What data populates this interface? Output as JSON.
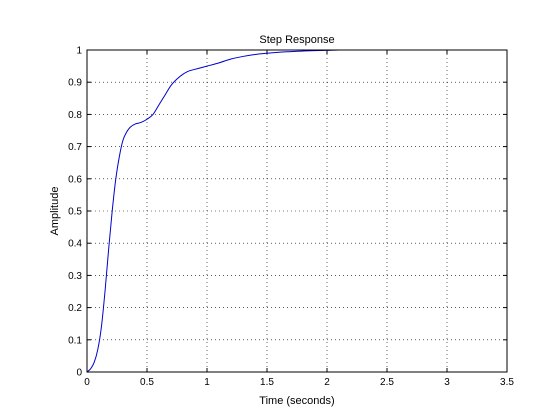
{
  "chart_data": {
    "type": "line",
    "title": "Step Response",
    "xlabel": "Time (seconds)",
    "ylabel": "Amplitude",
    "xlim": [
      0,
      3.5
    ],
    "ylim": [
      0,
      1
    ],
    "xticks": [
      0,
      0.5,
      1,
      1.5,
      2,
      2.5,
      3,
      3.5
    ],
    "xtick_labels": [
      "0",
      "0.5",
      "1",
      "1.5",
      "2",
      "2.5",
      "3",
      "3.5"
    ],
    "yticks": [
      0,
      0.1,
      0.2,
      0.3,
      0.4,
      0.5,
      0.6,
      0.7,
      0.8,
      0.9,
      1
    ],
    "ytick_labels": [
      "0",
      "0.1",
      "0.2",
      "0.3",
      "0.4",
      "0.5",
      "0.6",
      "0.7",
      "0.8",
      "0.9",
      "1"
    ],
    "grid": true,
    "line_color": "#0000cc",
    "series": [
      {
        "x": [
          0,
          0.03,
          0.06,
          0.09,
          0.12,
          0.15,
          0.18,
          0.21,
          0.24,
          0.27,
          0.3,
          0.33,
          0.36,
          0.4,
          0.45,
          0.5,
          0.55,
          0.6,
          0.65,
          0.7,
          0.75,
          0.8,
          0.85,
          0.9,
          0.95,
          1.0,
          1.1,
          1.2,
          1.3,
          1.4,
          1.5,
          1.6,
          1.7,
          1.8,
          1.9,
          2.0,
          2.1,
          2.2,
          2.25
        ],
        "y": [
          0,
          0.01,
          0.03,
          0.07,
          0.14,
          0.25,
          0.38,
          0.5,
          0.6,
          0.67,
          0.72,
          0.745,
          0.76,
          0.77,
          0.775,
          0.785,
          0.8,
          0.83,
          0.86,
          0.89,
          0.91,
          0.925,
          0.935,
          0.94,
          0.945,
          0.95,
          0.96,
          0.972,
          0.98,
          0.986,
          0.99,
          0.993,
          0.995,
          0.997,
          0.998,
          0.999,
          1.0,
          1.0,
          1.0
        ]
      }
    ]
  }
}
